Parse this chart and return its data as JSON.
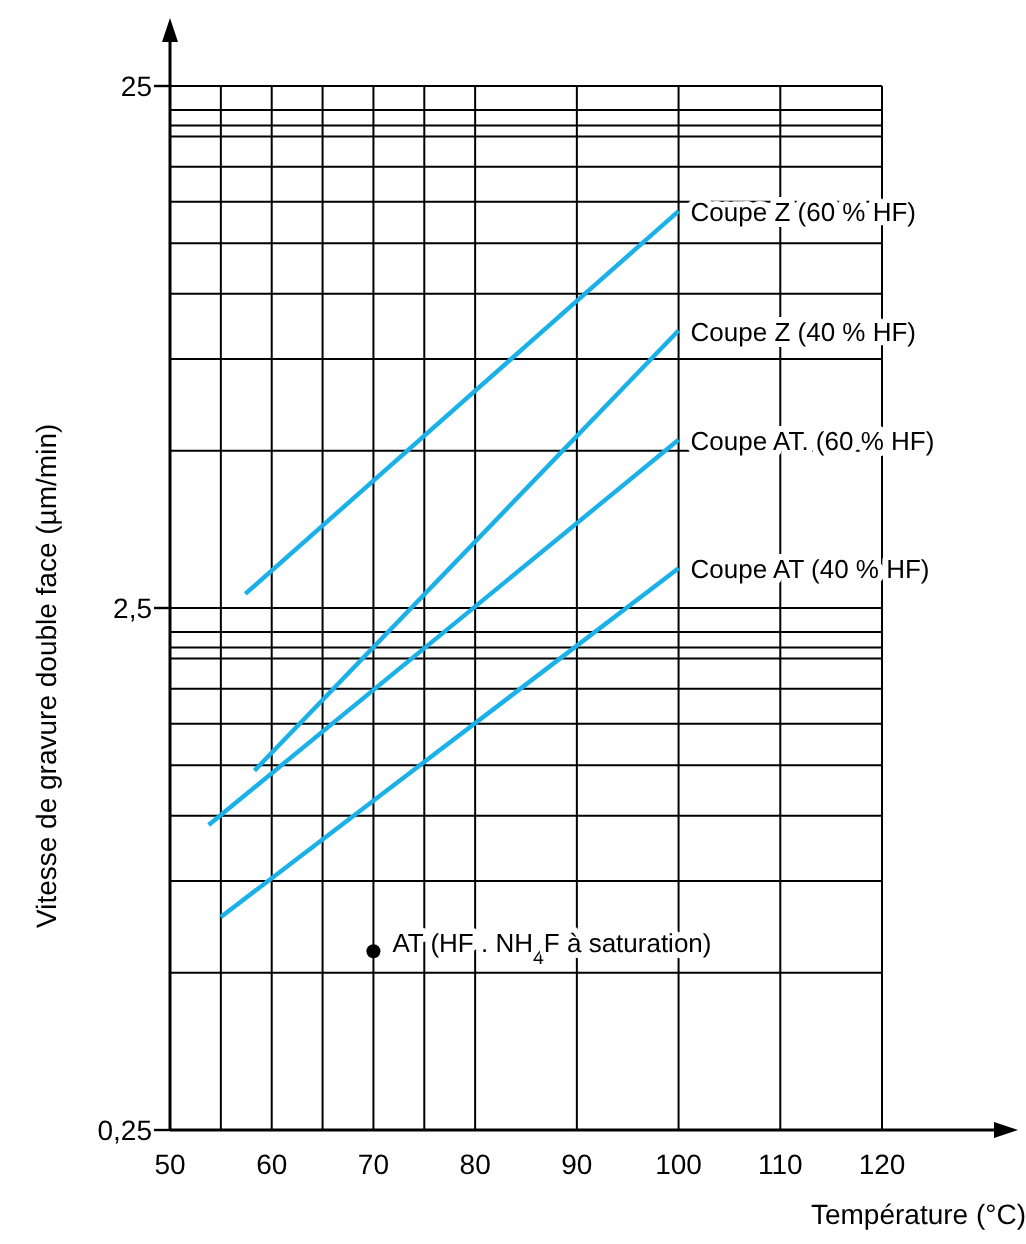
{
  "chart_data": {
    "type": "line",
    "xlabel": "Température (°C)",
    "ylabel": "Vitesse de gravure double face (µm/min)",
    "log": "y",
    "grid": true,
    "legend": false,
    "marker": "none",
    "line_style": "solid",
    "xlim": [
      50,
      120
    ],
    "xticks": [
      50,
      {
        "value": 55,
        "label": null
      },
      60,
      {
        "value": 65,
        "label": null
      },
      70,
      {
        "value": 75,
        "label": null
      },
      80,
      90,
      100,
      110,
      120
    ],
    "ylim": [
      0.25,
      25
    ],
    "yticks": [
      {
        "value": 0.25,
        "label": "0,25"
      },
      {
        "value": 0.5,
        "label": null
      },
      {
        "value": 0.75,
        "label": null
      },
      {
        "value": 1,
        "label": null
      },
      {
        "value": 1.25,
        "label": null
      },
      {
        "value": 1.5,
        "label": null
      },
      {
        "value": 1.75,
        "label": null
      },
      {
        "value": 2,
        "label": null
      },
      {
        "value": 2.1,
        "label": null
      },
      {
        "value": 2.25,
        "label": null
      },
      {
        "value": 2.5,
        "label": "2,5"
      },
      {
        "value": 5,
        "label": null
      },
      {
        "value": 7.5,
        "label": null
      },
      {
        "value": 10,
        "label": null
      },
      {
        "value": 12.5,
        "label": null
      },
      {
        "value": 15,
        "label": null
      },
      {
        "value": 17.5,
        "label": null
      },
      {
        "value": 20,
        "label": null
      },
      {
        "value": 21,
        "label": null
      },
      {
        "value": 22.5,
        "label": null
      },
      25
    ],
    "series": [
      {
        "name": "Coupe Z (60 % HF)",
        "color": "#1ab0e8",
        "x": [
          57.4,
          100
        ],
        "values": [
          2.66,
          14.4
        ]
      },
      {
        "name": "Coupe Z (40 % HF)",
        "color": "#1ab0e8",
        "x": [
          58.3,
          100
        ],
        "values": [
          1.22,
          8.5
        ]
      },
      {
        "name": "Coupe AT. (60 % HF)",
        "color": "#1ab0e8",
        "x": [
          53.8,
          100
        ],
        "values": [
          0.96,
          5.25
        ]
      },
      {
        "name": "Coupe AT (40 % HF)",
        "color": "#1ab0e8",
        "x": [
          55,
          100
        ],
        "values": [
          0.64,
          2.98
        ]
      },
      {
        "name": "AT (HF . NH$_{4}$F à saturation)",
        "type": "scatter",
        "marker": "circle",
        "color": "#000000",
        "x": [
          70
        ],
        "values": [
          0.55
        ]
      }
    ]
  }
}
